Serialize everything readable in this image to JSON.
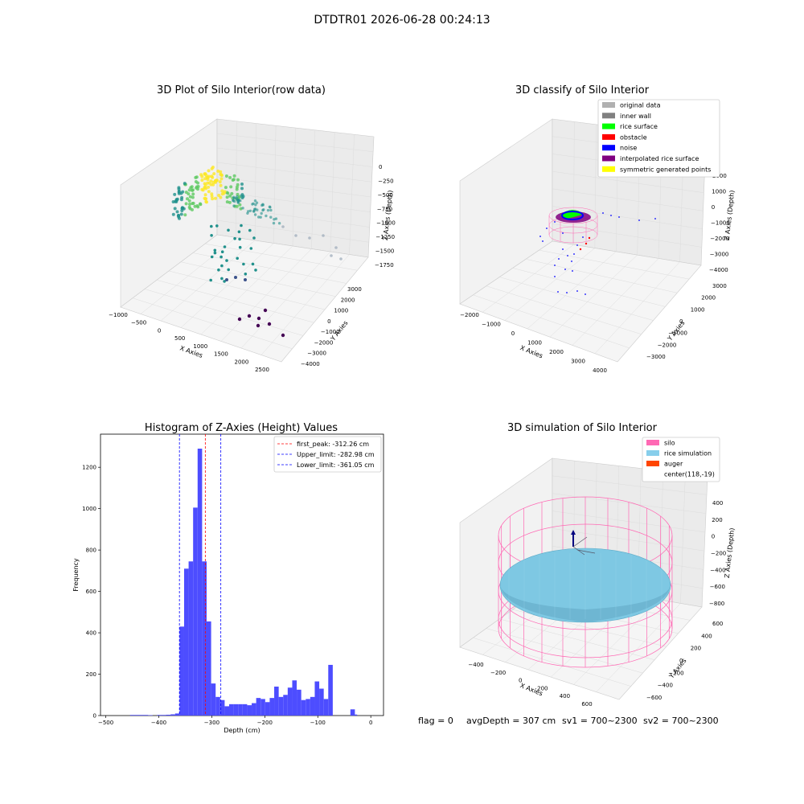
{
  "suptitle": "DTDTR01 2026-06-28 00:24:13",
  "chart_data": [
    {
      "type": "scatter",
      "title": "3D Plot of Silo Interior(row data)",
      "xlabel": "X Axies",
      "ylabel": "Y Axies",
      "zlabel": "Z Axies (Depth)",
      "xticks": [
        "−1000",
        "−500",
        "0",
        "500",
        "1000",
        "1500",
        "2000",
        "2500"
      ],
      "yticks": [
        "3000",
        "2000",
        "1000",
        "0",
        "−1000",
        "−2000",
        "−3000",
        "−4000"
      ],
      "zticks": [
        "0",
        "−250",
        "−500",
        "−750",
        "−1000",
        "−1250",
        "−1500",
        "−1750"
      ],
      "colormap": [
        "#440154",
        "#3b528b",
        "#21918c",
        "#5ec962",
        "#fde725"
      ]
    },
    {
      "type": "scatter",
      "title": "3D classify of Silo Interior",
      "xlabel": "X Axies",
      "ylabel": "Y Axies",
      "zlabel": "Z Axies (Depth)",
      "xticks": [
        "−2000",
        "−1000",
        "0",
        "1000",
        "2000",
        "3000",
        "4000"
      ],
      "yticks": [
        "3000",
        "2000",
        "1000",
        "0",
        "−1000",
        "−2000",
        "−3000"
      ],
      "zticks": [
        "2000",
        "1000",
        "0",
        "−1000",
        "−2000",
        "−3000",
        "−4000"
      ],
      "legend": [
        {
          "label": "original data",
          "color": "#b0b0b0"
        },
        {
          "label": "inner wall",
          "color": "#808080"
        },
        {
          "label": "rice surface",
          "color": "#00ff00"
        },
        {
          "label": "obstacle",
          "color": "#ff0000"
        },
        {
          "label": "noise",
          "color": "#0000ff"
        },
        {
          "label": "interpolated rice surface",
          "color": "#800080"
        },
        {
          "label": "symmetric generated points",
          "color": "#ffff00"
        }
      ],
      "legend_position": "upper-right"
    },
    {
      "type": "bar",
      "title": "Histogram of Z-Axies (Height) Values",
      "xlabel": "Depth (cm)",
      "ylabel": "Frequency",
      "xlim": [
        -510,
        24
      ],
      "ylim": [
        0,
        1360
      ],
      "xticks": [
        -500,
        -400,
        -300,
        -200,
        -100,
        0
      ],
      "yticks": [
        0,
        200,
        400,
        600,
        800,
        1000,
        1200
      ],
      "bin_width": 8.5,
      "bins": [
        {
          "x": -450,
          "y": 3
        },
        {
          "x": -441.5,
          "y": 3
        },
        {
          "x": -433,
          "y": 3
        },
        {
          "x": -424.5,
          "y": 3
        },
        {
          "x": -416,
          "y": 2
        },
        {
          "x": -399,
          "y": 3
        },
        {
          "x": -390.5,
          "y": 3
        },
        {
          "x": -382,
          "y": 4
        },
        {
          "x": -373.5,
          "y": 6
        },
        {
          "x": -365,
          "y": 10
        },
        {
          "x": -356.5,
          "y": 430
        },
        {
          "x": -348,
          "y": 710
        },
        {
          "x": -339.5,
          "y": 745
        },
        {
          "x": -331,
          "y": 1005
        },
        {
          "x": -322.5,
          "y": 1290
        },
        {
          "x": -314,
          "y": 745
        },
        {
          "x": -305.5,
          "y": 455
        },
        {
          "x": -297,
          "y": 155
        },
        {
          "x": -288.5,
          "y": 90
        },
        {
          "x": -280,
          "y": 75
        },
        {
          "x": -271.5,
          "y": 45
        },
        {
          "x": -263,
          "y": 55
        },
        {
          "x": -254.5,
          "y": 55
        },
        {
          "x": -246,
          "y": 55
        },
        {
          "x": -237.5,
          "y": 55
        },
        {
          "x": -229,
          "y": 50
        },
        {
          "x": -220.5,
          "y": 60
        },
        {
          "x": -212,
          "y": 85
        },
        {
          "x": -203.5,
          "y": 80
        },
        {
          "x": -195,
          "y": 65
        },
        {
          "x": -186.5,
          "y": 85
        },
        {
          "x": -178,
          "y": 140
        },
        {
          "x": -169.5,
          "y": 90
        },
        {
          "x": -161,
          "y": 100
        },
        {
          "x": -152.5,
          "y": 135
        },
        {
          "x": -144,
          "y": 170
        },
        {
          "x": -135.5,
          "y": 125
        },
        {
          "x": -127,
          "y": 75
        },
        {
          "x": -118.5,
          "y": 80
        },
        {
          "x": -110,
          "y": 90
        },
        {
          "x": -101.5,
          "y": 165
        },
        {
          "x": -93,
          "y": 130
        },
        {
          "x": -84.5,
          "y": 80
        },
        {
          "x": -76,
          "y": 245
        },
        {
          "x": -67.5,
          "y": 5
        },
        {
          "x": -59,
          "y": 30
        }
      ],
      "bar_color": "#4d4dff",
      "lines": [
        {
          "label": "first_peak: -312.26 cm",
          "x": -312.26,
          "color": "#ff0000"
        },
        {
          "label": "Upper_limit: -282.98 cm",
          "x": -282.98,
          "color": "#0000ff"
        },
        {
          "label": "Lower_limit: -361.05 cm",
          "x": -361.05,
          "color": "#0000ff"
        }
      ],
      "legend_position": "upper-right"
    },
    {
      "type": "scatter",
      "title": "3D simulation of Silo Interior",
      "xlabel": "X Axies",
      "ylabel": "Y Axies",
      "zlabel": "Z Axies (Depth)",
      "xticks": [
        "−400",
        "−200",
        "0",
        "200",
        "400",
        "600"
      ],
      "yticks": [
        "600",
        "400",
        "200",
        "0",
        "−200",
        "−400",
        "−600"
      ],
      "zticks": [
        "400",
        "200",
        "0",
        "−200",
        "−400",
        "−600",
        "−800"
      ],
      "legend": [
        {
          "label": "silo",
          "color": "#ff69b4"
        },
        {
          "label": "rice simulation",
          "color": "#87ceeb"
        },
        {
          "label": "auger",
          "color": "#ff4500"
        },
        {
          "label": "center(118,-19)",
          "color": ""
        }
      ],
      "legend_position": "upper-right"
    }
  ],
  "status": {
    "flag": "flag = 0",
    "avgDepth": "avgDepth = 307 cm",
    "sv1": "sv1 = 700~2300",
    "sv2": "sv2 = 700~2300"
  }
}
